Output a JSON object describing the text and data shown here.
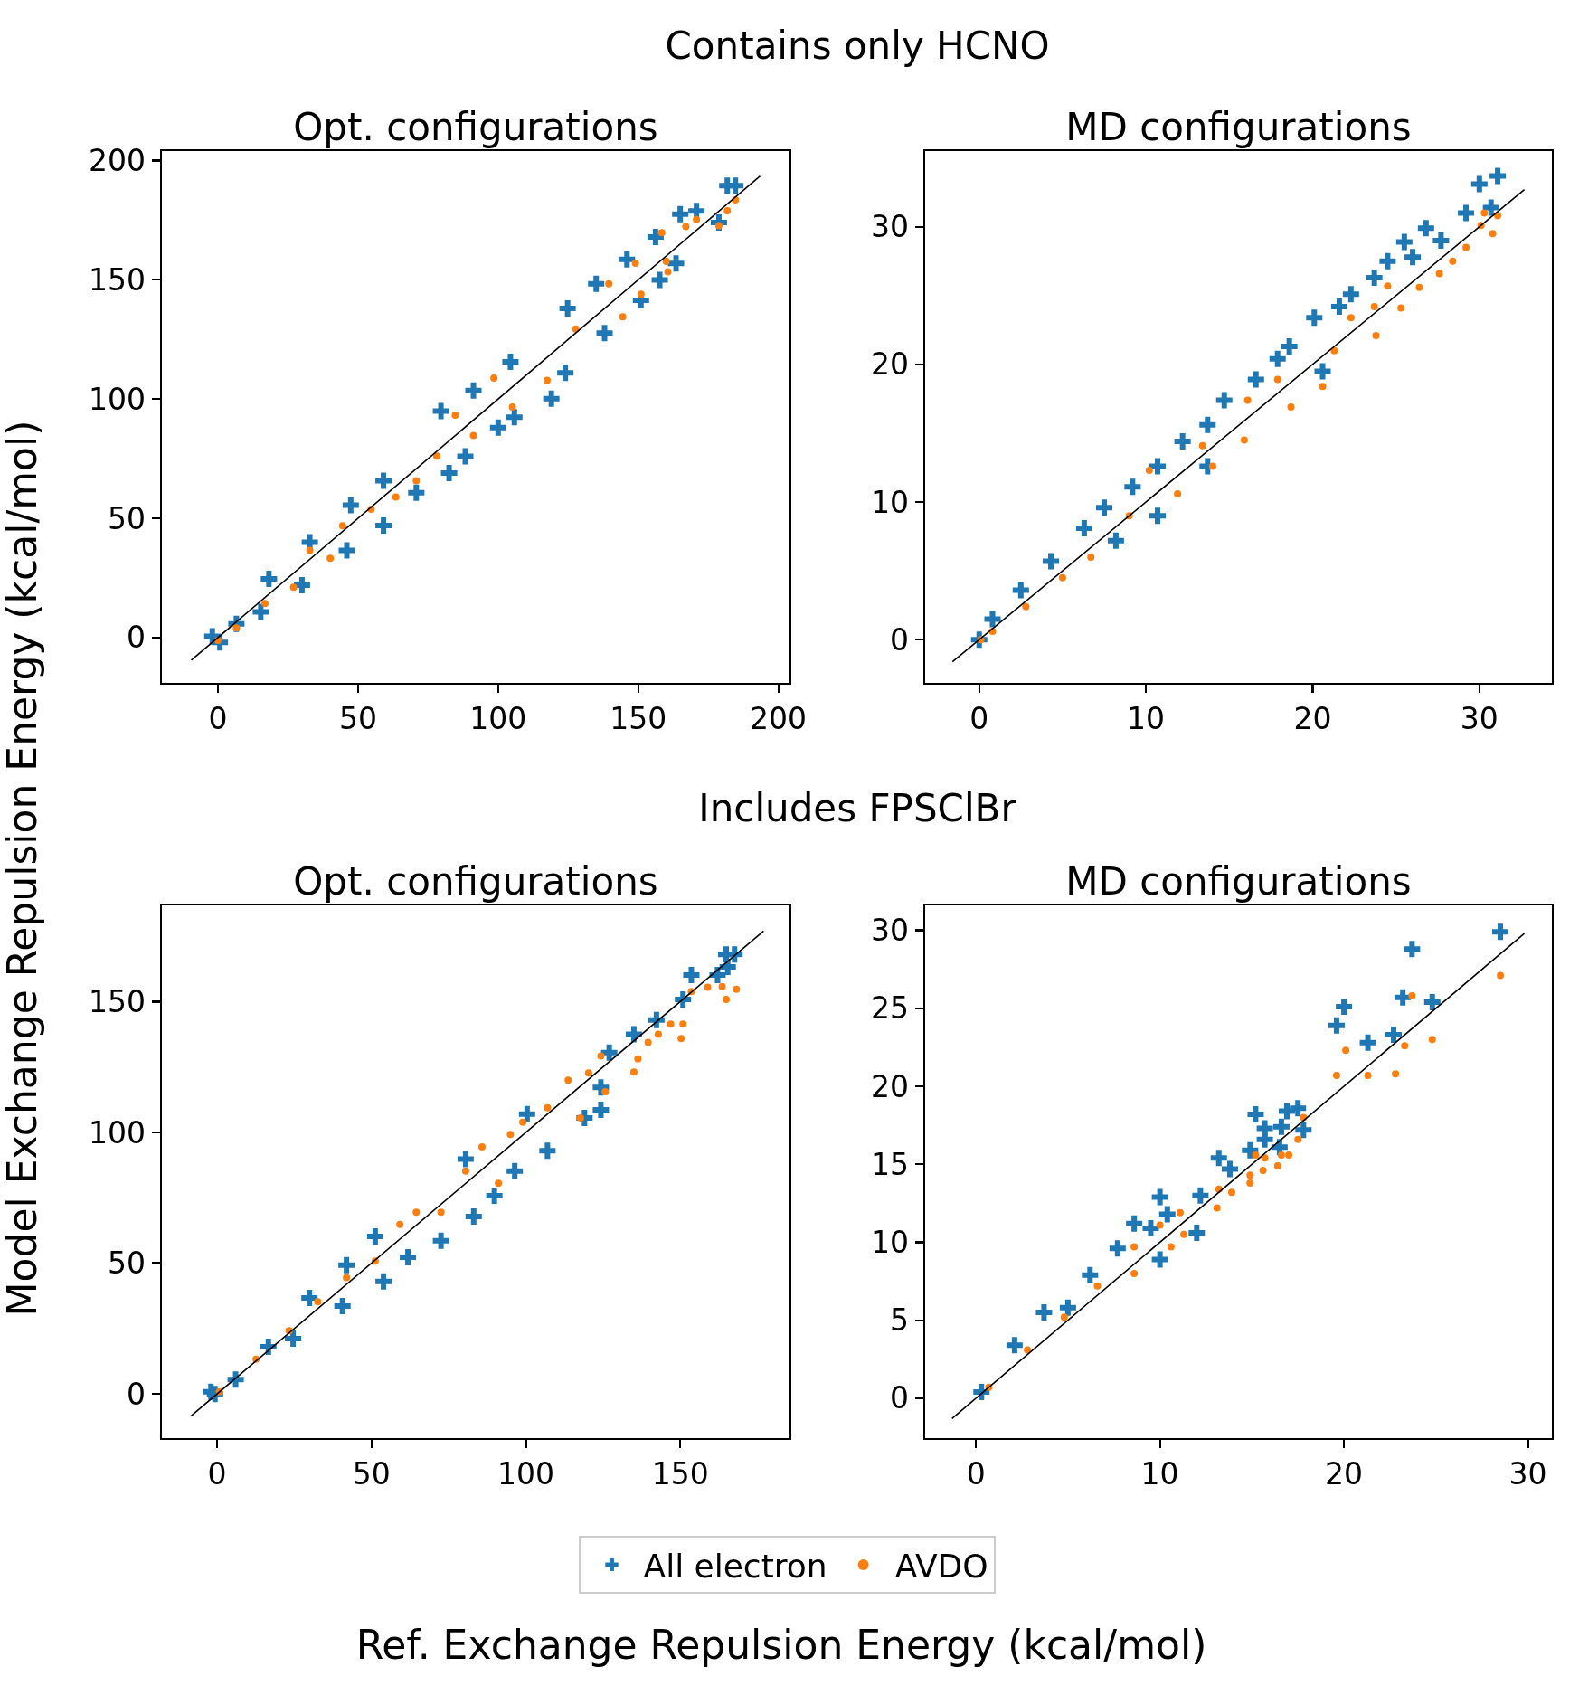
{
  "chart_data": [
    {
      "type": "scatter",
      "title": "Opt. configurations",
      "annotations": [
        "Contains only HCNO"
      ],
      "ylabel": "Model Exchange Repulsion Energy (kcal/mol)",
      "xlim": [
        -20,
        204
      ],
      "ylim": [
        -19,
        204
      ],
      "xticks": [
        0,
        50,
        100,
        150,
        200
      ],
      "yticks": [
        0,
        50,
        100,
        150,
        200
      ],
      "series": [
        {
          "color": "#1f77b4",
          "marker": "cross",
          "x": [
            181.8,
            184.7,
            170.8,
            165,
            178.8,
            156.2,
            163.5,
            157.7,
            151,
            146,
            135,
            138,
            124.8,
            124,
            119,
            105.8,
            104.4,
            100,
            91.2,
            88.3,
            79.6,
            82.5,
            70.8,
            59.1,
            59.1,
            47.4,
            46,
            32.8,
            30,
            18.2,
            15.3,
            0.7,
            -2,
            6.6
          ],
          "values": [
            189.5,
            189.5,
            178.9,
            177.5,
            174,
            168,
            156.9,
            150,
            141.4,
            158.6,
            148.3,
            127.7,
            138,
            111,
            100.2,
            92.4,
            115.6,
            88,
            103.6,
            76,
            95,
            69,
            60.7,
            65.8,
            47,
            55.5,
            36.6,
            40,
            22,
            24.6,
            10.8,
            -2,
            0.5,
            5.7
          ]
        },
        {
          "color": "#ff7f0e",
          "marker": "circle",
          "x": [
            184.7,
            181.8,
            178.8,
            170.8,
            167,
            158.4,
            160,
            160.6,
            149,
            151,
            144.5,
            139.5,
            127.7,
            117.5,
            105.1,
            98.5,
            91.2,
            84.7,
            78.1,
            70.8,
            63.5,
            54.7,
            44.5,
            40.1,
            32.8,
            27,
            16.8,
            6.6,
            0
          ],
          "values": [
            183.5,
            179,
            172.7,
            175.3,
            172.3,
            169.8,
            157.7,
            153.4,
            157,
            144,
            134.5,
            148.3,
            129.4,
            107.9,
            96.7,
            108.8,
            84.7,
            93.3,
            76.1,
            65.8,
            58.9,
            53.8,
            46.9,
            33.2,
            36.6,
            21.1,
            14.3,
            4,
            -1.2
          ]
        },
        {
          "type": "line",
          "color": "#000000",
          "x": [
            -9.5,
            193.5
          ],
          "values": [
            -9.5,
            193.5
          ]
        }
      ]
    },
    {
      "type": "scatter",
      "title": "MD configurations",
      "xlim": [
        -3.24,
        34.35
      ],
      "ylim": [
        -3.14,
        35.5
      ],
      "xticks": [
        0,
        10,
        20,
        30
      ],
      "yticks": [
        0,
        10,
        20,
        30
      ],
      "series": [
        {
          "color": "#1f77b4",
          "marker": "cross",
          "x": [
            31.1,
            30,
            30.7,
            29.2,
            26.8,
            25.5,
            26,
            24.5,
            27.7,
            23.7,
            22.3,
            21.6,
            20.1,
            18.6,
            17.9,
            16.6,
            14.7,
            13.7,
            12.2,
            10.7,
            9.2,
            7.5,
            6.3,
            4.3,
            2.5,
            0.8,
            0,
            20.6,
            10.7,
            8.2,
            13.7
          ],
          "values": [
            33.7,
            33.1,
            31.4,
            31,
            29.9,
            28.9,
            27.8,
            27.5,
            29,
            26.3,
            25.1,
            24.2,
            23.4,
            21.3,
            20.4,
            18.9,
            17.4,
            15.6,
            14.4,
            12.6,
            11.1,
            9.6,
            8.1,
            5.7,
            3.6,
            1.5,
            0,
            19.5,
            9,
            7.2,
            12.6
          ]
        },
        {
          "color": "#ff7f0e",
          "marker": "circle",
          "x": [
            31.1,
            30.3,
            30.1,
            30.8,
            29.2,
            28.4,
            27.6,
            26.4,
            25.3,
            24.5,
            23.7,
            23.8,
            22.3,
            21.3,
            20.6,
            18.7,
            17.9,
            16.1,
            15.9,
            14,
            13.4,
            11.9,
            10.2,
            9,
            6.7,
            5,
            2.8,
            0.8,
            0.1
          ],
          "values": [
            30.8,
            31,
            30.1,
            29.5,
            28.5,
            27.5,
            26.6,
            25.6,
            24.1,
            25.7,
            24.2,
            22.1,
            23.4,
            21,
            18.4,
            16.9,
            18.9,
            17.4,
            14.5,
            12.6,
            14.1,
            10.6,
            12.3,
            9,
            6,
            4.5,
            2.4,
            0.6,
            0
          ]
        },
        {
          "type": "line",
          "color": "#000000",
          "x": [
            -1.6,
            32.7
          ],
          "values": [
            -1.6,
            32.7
          ]
        }
      ]
    },
    {
      "type": "scatter",
      "title": "Opt. configurations",
      "annotations": [
        "Includes FPSClBr"
      ],
      "xlabel": "Ref. Exchange Repulsion Energy (kcal/mol)",
      "legend": "bottom",
      "xlim": [
        -17.9,
        185.4
      ],
      "ylim": [
        -16.9,
        186.8
      ],
      "xticks": [
        0,
        50,
        100,
        150
      ],
      "yticks": [
        0,
        50,
        100,
        150
      ],
      "series": [
        {
          "name": "All electron",
          "color": "#1f77b4",
          "marker": "cross",
          "x": [
            167.6,
            164.9,
            153.6,
            150.9,
            162.1,
            165.4,
            142.3,
            135,
            127,
            124.3,
            124.3,
            119,
            107,
            100.4,
            96.4,
            89.8,
            80.5,
            83.1,
            72.5,
            61.8,
            51.2,
            53.9,
            41.9,
            40.6,
            29.9,
            24.6,
            16.6,
            6,
            -0.7,
            -2
          ],
          "values": [
            168,
            168,
            160.2,
            150.8,
            160.2,
            163.3,
            143,
            137.5,
            130.5,
            117.2,
            108.6,
            105.5,
            93,
            107,
            85.2,
            75.8,
            89.8,
            67.8,
            58.6,
            52.3,
            60.2,
            43,
            49.2,
            33.6,
            36.7,
            21.1,
            18,
            5.5,
            0,
            0.8
          ]
        },
        {
          "name": "AVDO",
          "color": "#ff7f0e",
          "marker": "circle",
          "x": [
            168.2,
            163.6,
            164.9,
            158.9,
            153.6,
            150.9,
            150.3,
            146.9,
            142.9,
            139.6,
            136.3,
            135,
            124.3,
            125.7,
            120.3,
            113.7,
            117.7,
            107,
            99,
            95,
            85.8,
            91.1,
            80.5,
            72.5,
            64.5,
            59.2,
            51.2,
            41.9,
            32.6,
            23.3,
            12.6,
            0.7
          ],
          "values": [
            154.7,
            155.8,
            150.8,
            155.5,
            153.9,
            141.4,
            135.9,
            141.4,
            137.5,
            134.4,
            128.1,
            123.1,
            129.2,
            115.6,
            122.7,
            120,
            105.5,
            109.4,
            103.9,
            99.2,
            94.5,
            80.5,
            85.2,
            69.5,
            69.5,
            64.8,
            50.8,
            44.5,
            35.2,
            24.2,
            13.3,
            0.8
          ]
        },
        {
          "type": "line",
          "color": "#000000",
          "x": [
            -8.5,
            177
          ],
          "values": [
            -8.5,
            177
          ]
        }
      ]
    },
    {
      "type": "scatter",
      "title": "MD configurations",
      "xlim": [
        -2.76,
        31.3
      ],
      "ylim": [
        -2.56,
        31.6
      ],
      "xticks": [
        0,
        10,
        20,
        30
      ],
      "yticks": [
        0,
        5,
        10,
        15,
        20,
        25,
        30
      ],
      "series": [
        {
          "color": "#1f77b4",
          "marker": "cross",
          "x": [
            28.5,
            23.7,
            23.2,
            24.8,
            20,
            19.6,
            21.3,
            22.7,
            15.2,
            16.9,
            17.5,
            15.7,
            16.6,
            17.8,
            15.7,
            14.9,
            16.5,
            13.2,
            13.8,
            10,
            12.2,
            10.4,
            8.6,
            9.5,
            12,
            10,
            7.7,
            6.2,
            3.7,
            2.1,
            0.3,
            5
          ],
          "values": [
            29.9,
            28.8,
            25.7,
            25.4,
            25.1,
            23.9,
            22.8,
            23.3,
            18.2,
            18.4,
            18.6,
            17.3,
            17.4,
            17.2,
            16.6,
            15.9,
            16.1,
            15.4,
            14.7,
            12.9,
            13,
            11.8,
            11.2,
            10.9,
            10.6,
            8.9,
            9.6,
            7.9,
            5.5,
            3.4,
            0.4,
            5.8
          ]
        },
        {
          "color": "#ff7f0e",
          "marker": "circle",
          "x": [
            28.5,
            23.7,
            23.3,
            24.8,
            20.1,
            19.6,
            21.3,
            22.8,
            17.8,
            17.5,
            17,
            16.6,
            15.2,
            15.7,
            16.4,
            15.6,
            14.9,
            14.9,
            13.9,
            13.2,
            13.1,
            11.1,
            10,
            11.3,
            8.6,
            10.6,
            8.6,
            6.6,
            4.8,
            2.8,
            0.7
          ],
          "values": [
            27.1,
            25.8,
            22.6,
            23,
            22.3,
            20.7,
            20.7,
            20.8,
            18,
            16.6,
            15.6,
            15.6,
            15.6,
            15.4,
            14.9,
            14.6,
            14.3,
            13.8,
            13.2,
            13.4,
            12.2,
            11.9,
            11.1,
            10.5,
            9.7,
            9.7,
            8,
            7.2,
            5.2,
            3.1,
            0.7
          ]
        },
        {
          "type": "line",
          "color": "#000000",
          "x": [
            -1.3,
            29.8
          ],
          "values": [
            -1.3,
            29.8
          ]
        }
      ]
    }
  ]
}
